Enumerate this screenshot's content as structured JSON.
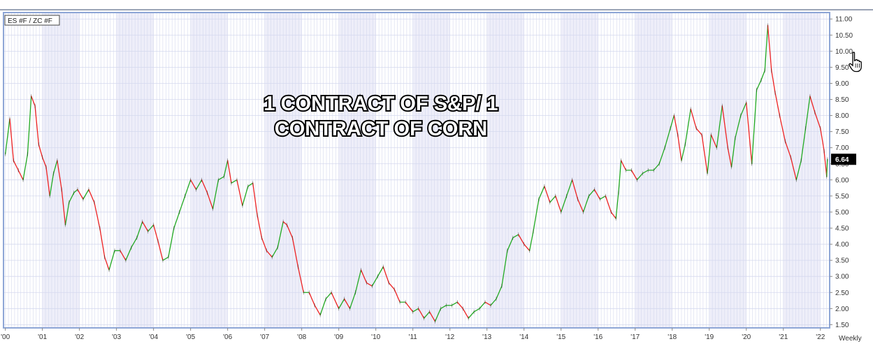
{
  "symbol_label": "ES #F / ZC #F",
  "annotation": {
    "line1": "1 CONTRACT OF S&P/ 1",
    "line2": "CONTRACT OF CORN"
  },
  "last_value_label": "6.64",
  "interval_label": "Weekly",
  "colors": {
    "up": "#22aa22",
    "down": "#ee2222",
    "frame": "#8ea6d6",
    "grid": "#d4d8ee",
    "year_band": "#eeeef9",
    "price_tag_bg": "#000000",
    "price_tag_fg": "#ffffff"
  },
  "chart_data": {
    "type": "line",
    "title": "",
    "xlabel": "",
    "ylabel": "",
    "ylim": [
      1.4,
      11.2
    ],
    "yticks": [
      1.5,
      2.0,
      2.5,
      3.0,
      3.5,
      4.0,
      4.5,
      5.0,
      5.5,
      6.0,
      6.5,
      7.0,
      7.5,
      8.0,
      8.5,
      9.0,
      9.5,
      10.0,
      10.5,
      11.0
    ],
    "ytick_labels": [
      "1.50",
      "2.00",
      "2.50",
      "3.00",
      "3.50",
      "4.00",
      "4.50",
      "5.00",
      "5.50",
      "6.00",
      "6.50",
      "7.00",
      "7.50",
      "8.00",
      "8.50",
      "9.00",
      "9.50",
      "10.00",
      "10.50",
      "11.00"
    ],
    "xlim": [
      1999.95,
      2022.25
    ],
    "xticks": [
      2000,
      2001,
      2002,
      2003,
      2004,
      2005,
      2006,
      2007,
      2008,
      2009,
      2010,
      2011,
      2012,
      2013,
      2014,
      2015,
      2016,
      2017,
      2018,
      2019,
      2020,
      2021,
      2022
    ],
    "xtick_labels": [
      "'00",
      "'01",
      "'02",
      "'03",
      "'04",
      "'05",
      "'06",
      "'07",
      "'08",
      "'09",
      "'10",
      "'11",
      "'12",
      "'13",
      "'14",
      "'15",
      "'16",
      "'17",
      "'18",
      "'19",
      "'20",
      "'21",
      "'22"
    ],
    "grid": true,
    "series": [
      {
        "values": [
          [
            2000.0,
            6.8
          ],
          [
            2000.12,
            7.9
          ],
          [
            2000.22,
            6.6
          ],
          [
            2000.35,
            6.3
          ],
          [
            2000.48,
            6.0
          ],
          [
            2000.6,
            6.8
          ],
          [
            2000.7,
            8.6
          ],
          [
            2000.8,
            8.3
          ],
          [
            2000.9,
            7.1
          ],
          [
            2001.0,
            6.7
          ],
          [
            2001.1,
            6.4
          ],
          [
            2001.2,
            5.5
          ],
          [
            2001.3,
            6.2
          ],
          [
            2001.4,
            6.6
          ],
          [
            2001.52,
            5.7
          ],
          [
            2001.62,
            4.6
          ],
          [
            2001.72,
            5.3
          ],
          [
            2001.85,
            5.6
          ],
          [
            2001.95,
            5.7
          ],
          [
            2002.1,
            5.4
          ],
          [
            2002.25,
            5.7
          ],
          [
            2002.4,
            5.3
          ],
          [
            2002.55,
            4.5
          ],
          [
            2002.68,
            3.6
          ],
          [
            2002.8,
            3.2
          ],
          [
            2002.95,
            3.8
          ],
          [
            2003.1,
            3.8
          ],
          [
            2003.25,
            3.5
          ],
          [
            2003.4,
            3.9
          ],
          [
            2003.55,
            4.2
          ],
          [
            2003.7,
            4.7
          ],
          [
            2003.85,
            4.4
          ],
          [
            2004.0,
            4.6
          ],
          [
            2004.12,
            4.1
          ],
          [
            2004.25,
            3.5
          ],
          [
            2004.4,
            3.6
          ],
          [
            2004.55,
            4.5
          ],
          [
            2004.7,
            5.0
          ],
          [
            2004.85,
            5.5
          ],
          [
            2005.0,
            6.0
          ],
          [
            2005.15,
            5.7
          ],
          [
            2005.3,
            6.0
          ],
          [
            2005.45,
            5.6
          ],
          [
            2005.6,
            5.1
          ],
          [
            2005.75,
            6.0
          ],
          [
            2005.9,
            6.1
          ],
          [
            2006.0,
            6.6
          ],
          [
            2006.1,
            5.9
          ],
          [
            2006.25,
            6.0
          ],
          [
            2006.4,
            5.2
          ],
          [
            2006.55,
            5.8
          ],
          [
            2006.68,
            5.9
          ],
          [
            2006.8,
            4.9
          ],
          [
            2006.92,
            4.2
          ],
          [
            2007.05,
            3.8
          ],
          [
            2007.2,
            3.6
          ],
          [
            2007.35,
            3.9
          ],
          [
            2007.5,
            4.7
          ],
          [
            2007.6,
            4.6
          ],
          [
            2007.75,
            4.2
          ],
          [
            2007.9,
            3.3
          ],
          [
            2008.05,
            2.5
          ],
          [
            2008.2,
            2.5
          ],
          [
            2008.35,
            2.1
          ],
          [
            2008.5,
            1.8
          ],
          [
            2008.65,
            2.3
          ],
          [
            2008.8,
            2.5
          ],
          [
            2009.0,
            2.0
          ],
          [
            2009.15,
            2.3
          ],
          [
            2009.3,
            2.0
          ],
          [
            2009.45,
            2.5
          ],
          [
            2009.6,
            3.2
          ],
          [
            2009.75,
            2.8
          ],
          [
            2009.9,
            2.7
          ],
          [
            2010.05,
            3.0
          ],
          [
            2010.2,
            3.3
          ],
          [
            2010.35,
            2.8
          ],
          [
            2010.5,
            2.6
          ],
          [
            2010.65,
            2.2
          ],
          [
            2010.8,
            2.2
          ],
          [
            2011.0,
            1.9
          ],
          [
            2011.15,
            2.0
          ],
          [
            2011.3,
            1.7
          ],
          [
            2011.45,
            1.9
          ],
          [
            2011.6,
            1.6
          ],
          [
            2011.75,
            2.0
          ],
          [
            2011.9,
            2.1
          ],
          [
            2012.05,
            2.1
          ],
          [
            2012.2,
            2.2
          ],
          [
            2012.35,
            2.0
          ],
          [
            2012.5,
            1.7
          ],
          [
            2012.65,
            1.9
          ],
          [
            2012.8,
            2.0
          ],
          [
            2012.95,
            2.2
          ],
          [
            2013.1,
            2.1
          ],
          [
            2013.25,
            2.3
          ],
          [
            2013.4,
            2.7
          ],
          [
            2013.55,
            3.8
          ],
          [
            2013.7,
            4.2
          ],
          [
            2013.85,
            4.3
          ],
          [
            2014.0,
            4.0
          ],
          [
            2014.15,
            3.8
          ],
          [
            2014.25,
            4.4
          ],
          [
            2014.4,
            5.4
          ],
          [
            2014.55,
            5.8
          ],
          [
            2014.7,
            5.3
          ],
          [
            2014.85,
            5.5
          ],
          [
            2015.0,
            5.0
          ],
          [
            2015.15,
            5.5
          ],
          [
            2015.3,
            6.0
          ],
          [
            2015.45,
            5.4
          ],
          [
            2015.6,
            5.0
          ],
          [
            2015.75,
            5.5
          ],
          [
            2015.9,
            5.7
          ],
          [
            2016.05,
            5.4
          ],
          [
            2016.2,
            5.5
          ],
          [
            2016.35,
            5.0
          ],
          [
            2016.48,
            4.8
          ],
          [
            2016.55,
            5.6
          ],
          [
            2016.62,
            6.6
          ],
          [
            2016.75,
            6.3
          ],
          [
            2016.9,
            6.3
          ],
          [
            2017.05,
            6.0
          ],
          [
            2017.2,
            6.2
          ],
          [
            2017.35,
            6.3
          ],
          [
            2017.5,
            6.3
          ],
          [
            2017.65,
            6.5
          ],
          [
            2017.8,
            7.0
          ],
          [
            2017.95,
            7.6
          ],
          [
            2018.05,
            8.0
          ],
          [
            2018.15,
            7.4
          ],
          [
            2018.25,
            6.6
          ],
          [
            2018.35,
            7.1
          ],
          [
            2018.5,
            8.2
          ],
          [
            2018.65,
            7.6
          ],
          [
            2018.8,
            7.4
          ],
          [
            2018.95,
            6.2
          ],
          [
            2019.05,
            7.4
          ],
          [
            2019.2,
            7.0
          ],
          [
            2019.35,
            8.3
          ],
          [
            2019.5,
            7.0
          ],
          [
            2019.6,
            6.4
          ],
          [
            2019.7,
            7.3
          ],
          [
            2019.85,
            8.0
          ],
          [
            2020.0,
            8.4
          ],
          [
            2020.15,
            6.5
          ],
          [
            2020.28,
            8.8
          ],
          [
            2020.4,
            9.1
          ],
          [
            2020.5,
            9.4
          ],
          [
            2020.58,
            10.8
          ],
          [
            2020.68,
            9.4
          ],
          [
            2020.78,
            8.7
          ],
          [
            2020.9,
            8.0
          ],
          [
            2021.05,
            7.2
          ],
          [
            2021.2,
            6.7
          ],
          [
            2021.35,
            6.0
          ],
          [
            2021.48,
            6.6
          ],
          [
            2021.6,
            7.6
          ],
          [
            2021.72,
            8.6
          ],
          [
            2021.85,
            8.1
          ],
          [
            2022.0,
            7.6
          ],
          [
            2022.1,
            6.9
          ],
          [
            2022.17,
            6.1
          ],
          [
            2022.19,
            6.64
          ]
        ]
      }
    ]
  }
}
